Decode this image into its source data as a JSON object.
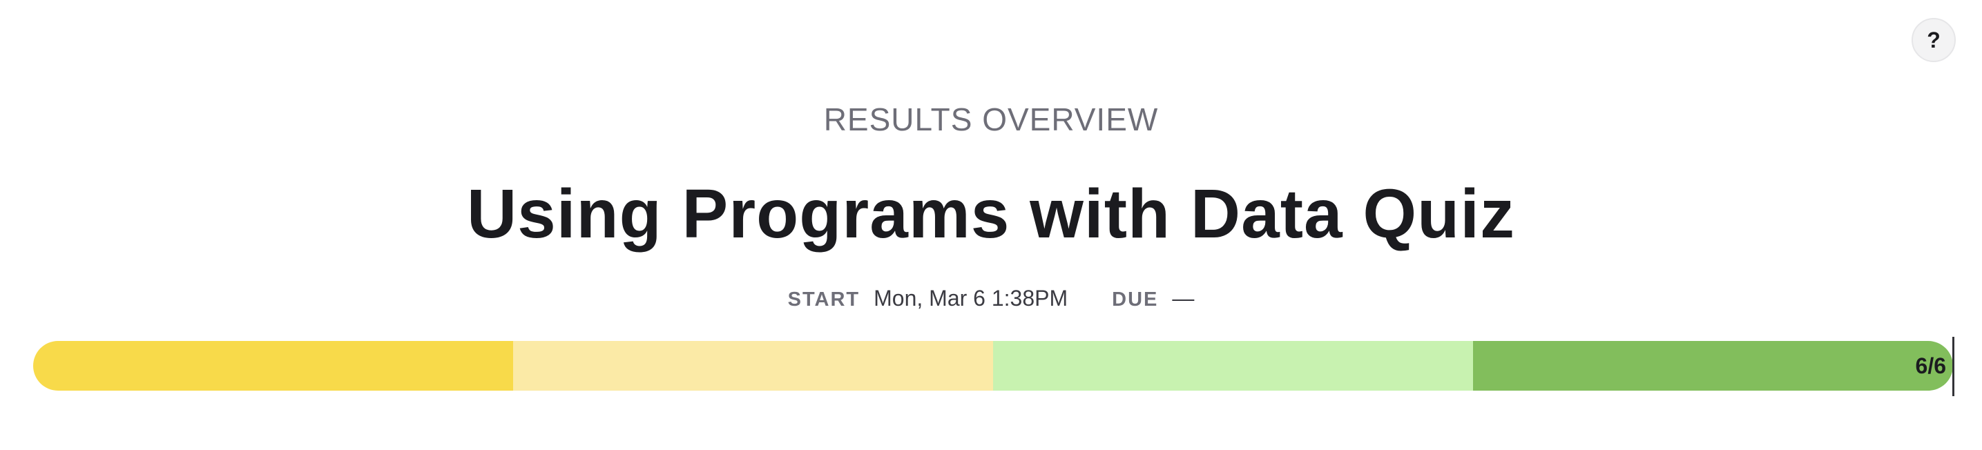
{
  "help": {
    "label": "?"
  },
  "header": {
    "eyebrow": "RESULTS OVERVIEW",
    "title": "Using Programs with Data Quiz",
    "start_label": "START",
    "start_value": "Mon, Mar 6 1:38PM",
    "due_label": "DUE",
    "due_value": "—"
  },
  "progress": {
    "score_label": "6/6",
    "score": 6,
    "total": 6,
    "segment_colors": [
      "#f8da4a",
      "#fbeaa6",
      "#c8f2b0",
      "#82be5c"
    ]
  }
}
